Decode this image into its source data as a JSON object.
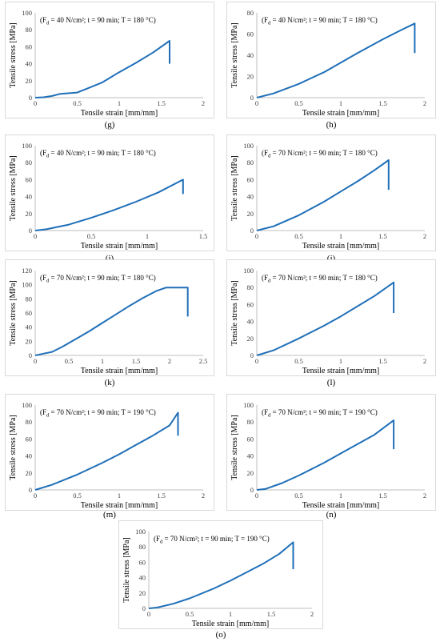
{
  "charts": [
    {
      "label": "(g)",
      "chart_data": {
        "type": "line",
        "annotation": "(F_d = 40 N/cm²; t = 90 min; T = 180 °C)",
        "xlabel": "Tensile strain [mm/mm]",
        "ylabel": "Tensile stress [MPa]",
        "xlim": [
          0,
          2
        ],
        "ylim": [
          0,
          100
        ],
        "xticks": [
          0,
          0.5,
          1,
          1.5,
          2
        ],
        "yticks": [
          0,
          20,
          40,
          60,
          80,
          100
        ],
        "grid": false,
        "series": [
          {
            "x": [
              0,
              0.1,
              0.2,
              0.3,
              0.5,
              0.6,
              0.8,
              1.0,
              1.2,
              1.4,
              1.6,
              1.6
            ],
            "y": [
              0,
              0.5,
              2,
              4.5,
              6,
              10,
              18,
              30,
              41,
              53,
              67,
              40
            ]
          }
        ]
      }
    },
    {
      "label": "(h)",
      "chart_data": {
        "type": "line",
        "annotation": "(F_d = 40 N/cm²; t = 90 min; T = 180 °C)",
        "xlabel": "Tensile strain [mm/mm]",
        "ylabel": "Tensile stress [MPa]",
        "xlim": [
          0,
          2
        ],
        "ylim": [
          0,
          80
        ],
        "xticks": [
          0,
          0.5,
          1,
          1.5,
          2
        ],
        "yticks": [
          0,
          20,
          40,
          60,
          80
        ],
        "grid": false,
        "series": [
          {
            "x": [
              0,
              0.2,
              0.5,
              0.8,
              1.0,
              1.2,
              1.5,
              1.7,
              1.88,
              1.88
            ],
            "y": [
              0,
              4,
              13,
              24,
              33,
              42,
              55,
              63,
              70,
              42
            ]
          }
        ]
      }
    },
    {
      "label": "(i)",
      "chart_data": {
        "type": "line",
        "annotation": "(F_d = 40 N/cm²; t = 90 min; T = 180 °C)",
        "xlabel": "Tensile strain [mm/mm]",
        "ylabel": "Tensile stress [MPa]",
        "xlim": [
          0,
          1.5
        ],
        "ylim": [
          0,
          100
        ],
        "xticks": [
          0,
          0.5,
          1,
          1.5
        ],
        "yticks": [
          0,
          20,
          40,
          60,
          80,
          100
        ],
        "grid": false,
        "series": [
          {
            "x": [
              0,
              0.1,
              0.3,
              0.5,
              0.7,
              0.9,
              1.1,
              1.32,
              1.32
            ],
            "y": [
              0,
              1.5,
              7,
              15,
              24,
              34,
              45,
              60,
              43
            ]
          }
        ]
      }
    },
    {
      "label": "(j)",
      "chart_data": {
        "type": "line",
        "annotation": "(F_d = 70 N/cm²; t = 90 min; T = 180 °C)",
        "xlabel": "Tensile strain [mm/mm]",
        "ylabel": "Tensile stress [MPa]",
        "xlim": [
          0,
          2
        ],
        "ylim": [
          0,
          100
        ],
        "xticks": [
          0,
          0.5,
          1,
          1.5,
          2
        ],
        "yticks": [
          0,
          20,
          40,
          60,
          80,
          100
        ],
        "grid": false,
        "series": [
          {
            "x": [
              0,
              0.2,
              0.5,
              0.8,
              1.0,
              1.2,
              1.4,
              1.57,
              1.57
            ],
            "y": [
              0,
              5,
              18,
              34,
              46,
              58,
              71,
              83,
              48
            ]
          }
        ]
      }
    },
    {
      "label": "(k)",
      "chart_data": {
        "type": "line",
        "annotation": "(F_d = 70 N/cm²; t = 90 min; T = 180 °C)",
        "xlabel": "Tensile strain [mm/mm]",
        "ylabel": "Tensile stress [MPa]",
        "xlim": [
          0,
          2.5
        ],
        "ylim": [
          0,
          120
        ],
        "xticks": [
          0,
          0.5,
          1,
          1.5,
          2,
          2.5
        ],
        "yticks": [
          0,
          20,
          40,
          60,
          80,
          100,
          120
        ],
        "grid": false,
        "series": [
          {
            "x": [
              0,
              0.1,
              0.25,
              0.4,
              0.6,
              0.8,
              1.0,
              1.2,
              1.4,
              1.6,
              1.8,
              1.95,
              2.1,
              2.27,
              2.27
            ],
            "y": [
              0,
              2,
              5,
              12,
              23,
              34,
              46,
              58,
              70,
              81,
              91,
              96,
              96,
              96,
              55
            ]
          }
        ]
      }
    },
    {
      "label": "(l)",
      "chart_data": {
        "type": "line",
        "annotation": "(F_d = 70 N/cm²; t = 90 min; T = 180 °C)",
        "xlabel": "Tensile strain [mm/mm]",
        "ylabel": "Tensile stress [MPa]",
        "xlim": [
          0,
          2
        ],
        "ylim": [
          0,
          100
        ],
        "xticks": [
          0,
          0.5,
          1,
          1.5,
          2
        ],
        "yticks": [
          0,
          20,
          40,
          60,
          80,
          100
        ],
        "grid": false,
        "series": [
          {
            "x": [
              0,
              0.2,
              0.5,
              0.8,
              1.0,
              1.2,
              1.4,
              1.63,
              1.63
            ],
            "y": [
              0,
              6,
              20,
              35,
              46,
              58,
              70,
              86,
              50
            ]
          }
        ]
      }
    },
    {
      "label": "(m)",
      "chart_data": {
        "type": "line",
        "annotation": "(F_d = 70 N/cm²; t = 90 min; T = 190 °C)",
        "xlabel": "Tensile strain [mm/mm]",
        "ylabel": "Tensile stress [MPa]",
        "xlim": [
          0,
          2
        ],
        "ylim": [
          0,
          100
        ],
        "xticks": [
          0,
          0.5,
          1,
          1.5,
          2
        ],
        "yticks": [
          0,
          20,
          40,
          60,
          80,
          100
        ],
        "grid": false,
        "series": [
          {
            "x": [
              0,
              0.2,
              0.5,
              0.8,
              1.0,
              1.2,
              1.4,
              1.6,
              1.7,
              1.7
            ],
            "y": [
              0,
              6,
              18,
              32,
              42,
              53,
              64,
              76,
              91,
              64
            ]
          }
        ]
      }
    },
    {
      "label": "(n)",
      "chart_data": {
        "type": "line",
        "annotation": "(F_d = 70 N/cm²; t = 90 min; T = 190 °C)",
        "xlabel": "Tensile strain [mm/mm]",
        "ylabel": "Tensile stress [MPa]",
        "xlim": [
          0,
          2
        ],
        "ylim": [
          0,
          100
        ],
        "xticks": [
          0,
          0.5,
          1,
          1.5,
          2
        ],
        "yticks": [
          0,
          20,
          40,
          60,
          80,
          100
        ],
        "grid": false,
        "series": [
          {
            "x": [
              0,
              0.1,
              0.3,
              0.5,
              0.8,
              1.0,
              1.2,
              1.4,
              1.63,
              1.63
            ],
            "y": [
              0,
              1,
              8,
              17,
              32,
              43,
              54,
              65,
              82,
              48
            ]
          }
        ]
      }
    },
    {
      "label": "(o)",
      "chart_data": {
        "type": "line",
        "annotation": "(F_d = 70 N/cm²; t = 90 min; T = 190 °C)",
        "xlabel": "Tensile strain [mm/mm]",
        "ylabel": "Tensile stress [MPa]",
        "xlim": [
          0,
          2
        ],
        "ylim": [
          0,
          100
        ],
        "xticks": [
          0,
          0.5,
          1,
          1.5,
          2
        ],
        "yticks": [
          0,
          20,
          40,
          60,
          80,
          100
        ],
        "grid": false,
        "series": [
          {
            "x": [
              0,
              0.1,
              0.3,
              0.5,
              0.8,
              1.0,
              1.2,
              1.4,
              1.6,
              1.77,
              1.77
            ],
            "y": [
              0,
              1,
              6,
              13,
              26,
              36,
              47,
              58,
              71,
              86,
              51
            ]
          }
        ]
      }
    }
  ]
}
